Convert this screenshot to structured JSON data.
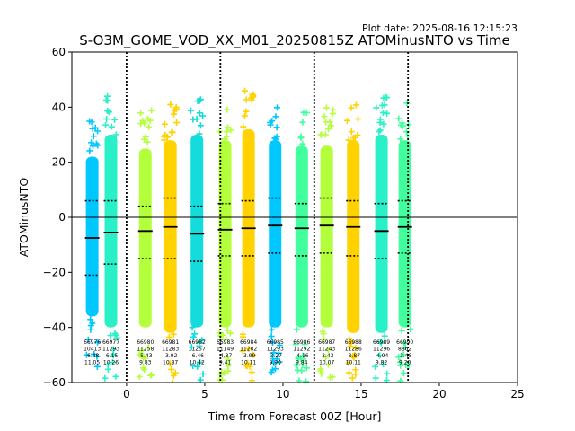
{
  "plot_date": "Plot date: 2025-08-16 12:15:23",
  "chart_data": {
    "type": "scatter",
    "title": "S-O3M_GOME_VOD_XX_M01_20250815Z ATOMinusNTO vs Time",
    "xlabel": "Time from Forecast 00Z [Hour]",
    "ylabel": "ATOMinusNTO",
    "xlim": [
      -3.5,
      25
    ],
    "ylim": [
      -60,
      60
    ],
    "xticks": [
      0,
      5,
      10,
      15,
      20,
      25
    ],
    "yticks": [
      -60,
      -40,
      -20,
      0,
      20,
      40,
      60
    ],
    "grid": false,
    "zero_line": 0,
    "cycle_boundaries": [
      0,
      6,
      12,
      18
    ],
    "groups": [
      {
        "x": -2.2,
        "color": "#00c8ff",
        "top": 22,
        "bottom": -36,
        "median": -7.5,
        "upper": 6,
        "lower": -21,
        "stats": [
          "66976",
          "10413",
          "-6.48",
          "11.05"
        ]
      },
      {
        "x": -1.0,
        "color": "#2af0c8",
        "top": 30,
        "bottom": -40,
        "median": -5.5,
        "upper": 6,
        "lower": -17,
        "stats": [
          "66977",
          "11293",
          "-6.15",
          "10.26"
        ]
      },
      {
        "x": 1.2,
        "color": "#b4ff3c",
        "top": 25,
        "bottom": -40,
        "median": -5.0,
        "upper": 4,
        "lower": -15,
        "stats": [
          "66980",
          "11258",
          "-5.43",
          "9.83"
        ]
      },
      {
        "x": 2.8,
        "color": "#ffd200",
        "top": 28,
        "bottom": -42,
        "median": -3.5,
        "upper": 7,
        "lower": -15,
        "stats": [
          "66981",
          "11283",
          "-3.92",
          "10.87"
        ]
      },
      {
        "x": 4.5,
        "color": "#14dcdc",
        "top": 30,
        "bottom": -40,
        "median": -6.0,
        "upper": 4,
        "lower": -16,
        "stats": [
          "66982",
          "11257",
          "-6.46",
          "10.42"
        ]
      },
      {
        "x": 6.3,
        "color": "#b4ff3c",
        "top": 28,
        "bottom": -40,
        "median": -4.5,
        "upper": 5,
        "lower": -14,
        "stats": [
          "66983",
          "11149",
          "-4.87",
          "9.41"
        ]
      },
      {
        "x": 7.8,
        "color": "#ffd200",
        "top": 32,
        "bottom": -40,
        "median": -4.0,
        "upper": 6,
        "lower": -14,
        "stats": [
          "66984",
          "11282",
          "-3.99",
          "10.11"
        ]
      },
      {
        "x": 9.5,
        "color": "#00c8ff",
        "top": 28,
        "bottom": -40,
        "median": -3.0,
        "upper": 7,
        "lower": -13,
        "stats": [
          "66985",
          "11293",
          "-3.27",
          "9.90"
        ]
      },
      {
        "x": 11.2,
        "color": "#40ff9c",
        "top": 26,
        "bottom": -40,
        "median": -4.0,
        "upper": 5,
        "lower": -14,
        "stats": [
          "66986",
          "11292",
          "-4.16",
          "9.84"
        ]
      },
      {
        "x": 12.8,
        "color": "#b4ff3c",
        "top": 26,
        "bottom": -40,
        "median": -3.0,
        "upper": 7,
        "lower": -13,
        "stats": [
          "66987",
          "11243",
          "-3.43",
          "10.07"
        ]
      },
      {
        "x": 14.5,
        "color": "#ffd200",
        "top": 28,
        "bottom": -42,
        "median": -3.5,
        "upper": 6,
        "lower": -14,
        "stats": [
          "66988",
          "11286",
          "-3.87",
          "10.11"
        ]
      },
      {
        "x": 16.3,
        "color": "#2af0c8",
        "top": 30,
        "bottom": -42,
        "median": -5.0,
        "upper": 5,
        "lower": -15,
        "stats": [
          "66989",
          "11296",
          "-4.94",
          "9.82"
        ]
      },
      {
        "x": 17.8,
        "color": "#40ff9c",
        "top": 28,
        "bottom": -40,
        "median": -3.5,
        "upper": 6,
        "lower": -13,
        "stats": [
          "66990",
          "8862",
          "-3.48",
          "9.20"
        ]
      }
    ]
  }
}
